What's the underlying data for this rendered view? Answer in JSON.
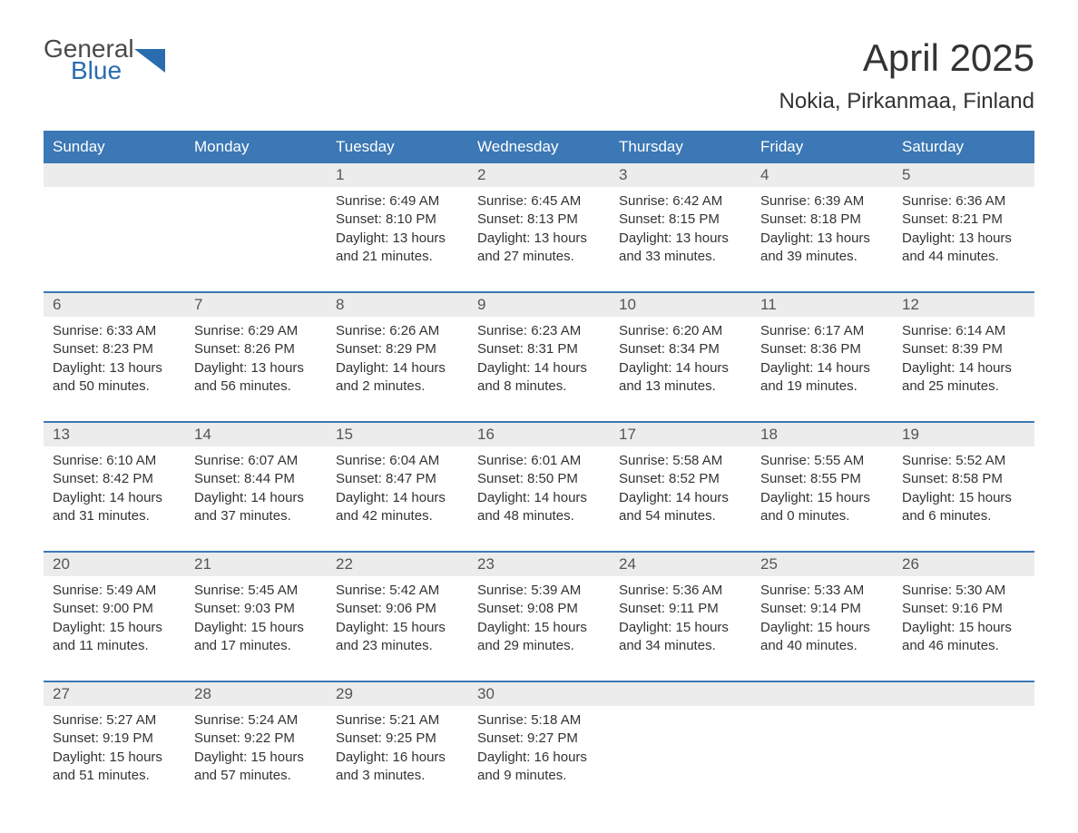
{
  "logo": {
    "general": "General",
    "blue": "Blue",
    "icon_color": "#2a6cb0"
  },
  "title": "April 2025",
  "location": "Nokia, Pirkanmaa, Finland",
  "colors": {
    "header_bg": "#3b78b5",
    "header_text": "#ffffff",
    "daynum_bg": "#ececec",
    "daynum_text": "#555555",
    "body_text": "#333333",
    "rule": "#3b78b5",
    "page_bg": "#ffffff"
  },
  "fonts": {
    "family": "Arial",
    "title_size_pt": 32,
    "location_size_pt": 18,
    "weekday_size_pt": 13,
    "daynum_size_pt": 13,
    "body_size_pt": 11
  },
  "weekdays": [
    "Sunday",
    "Monday",
    "Tuesday",
    "Wednesday",
    "Thursday",
    "Friday",
    "Saturday"
  ],
  "weeks": [
    [
      {
        "n": "",
        "lines": [
          "",
          "",
          "",
          ""
        ]
      },
      {
        "n": "",
        "lines": [
          "",
          "",
          "",
          ""
        ]
      },
      {
        "n": "1",
        "lines": [
          "Sunrise: 6:49 AM",
          "Sunset: 8:10 PM",
          "Daylight: 13 hours",
          "and 21 minutes."
        ]
      },
      {
        "n": "2",
        "lines": [
          "Sunrise: 6:45 AM",
          "Sunset: 8:13 PM",
          "Daylight: 13 hours",
          "and 27 minutes."
        ]
      },
      {
        "n": "3",
        "lines": [
          "Sunrise: 6:42 AM",
          "Sunset: 8:15 PM",
          "Daylight: 13 hours",
          "and 33 minutes."
        ]
      },
      {
        "n": "4",
        "lines": [
          "Sunrise: 6:39 AM",
          "Sunset: 8:18 PM",
          "Daylight: 13 hours",
          "and 39 minutes."
        ]
      },
      {
        "n": "5",
        "lines": [
          "Sunrise: 6:36 AM",
          "Sunset: 8:21 PM",
          "Daylight: 13 hours",
          "and 44 minutes."
        ]
      }
    ],
    [
      {
        "n": "6",
        "lines": [
          "Sunrise: 6:33 AM",
          "Sunset: 8:23 PM",
          "Daylight: 13 hours",
          "and 50 minutes."
        ]
      },
      {
        "n": "7",
        "lines": [
          "Sunrise: 6:29 AM",
          "Sunset: 8:26 PM",
          "Daylight: 13 hours",
          "and 56 minutes."
        ]
      },
      {
        "n": "8",
        "lines": [
          "Sunrise: 6:26 AM",
          "Sunset: 8:29 PM",
          "Daylight: 14 hours",
          "and 2 minutes."
        ]
      },
      {
        "n": "9",
        "lines": [
          "Sunrise: 6:23 AM",
          "Sunset: 8:31 PM",
          "Daylight: 14 hours",
          "and 8 minutes."
        ]
      },
      {
        "n": "10",
        "lines": [
          "Sunrise: 6:20 AM",
          "Sunset: 8:34 PM",
          "Daylight: 14 hours",
          "and 13 minutes."
        ]
      },
      {
        "n": "11",
        "lines": [
          "Sunrise: 6:17 AM",
          "Sunset: 8:36 PM",
          "Daylight: 14 hours",
          "and 19 minutes."
        ]
      },
      {
        "n": "12",
        "lines": [
          "Sunrise: 6:14 AM",
          "Sunset: 8:39 PM",
          "Daylight: 14 hours",
          "and 25 minutes."
        ]
      }
    ],
    [
      {
        "n": "13",
        "lines": [
          "Sunrise: 6:10 AM",
          "Sunset: 8:42 PM",
          "Daylight: 14 hours",
          "and 31 minutes."
        ]
      },
      {
        "n": "14",
        "lines": [
          "Sunrise: 6:07 AM",
          "Sunset: 8:44 PM",
          "Daylight: 14 hours",
          "and 37 minutes."
        ]
      },
      {
        "n": "15",
        "lines": [
          "Sunrise: 6:04 AM",
          "Sunset: 8:47 PM",
          "Daylight: 14 hours",
          "and 42 minutes."
        ]
      },
      {
        "n": "16",
        "lines": [
          "Sunrise: 6:01 AM",
          "Sunset: 8:50 PM",
          "Daylight: 14 hours",
          "and 48 minutes."
        ]
      },
      {
        "n": "17",
        "lines": [
          "Sunrise: 5:58 AM",
          "Sunset: 8:52 PM",
          "Daylight: 14 hours",
          "and 54 minutes."
        ]
      },
      {
        "n": "18",
        "lines": [
          "Sunrise: 5:55 AM",
          "Sunset: 8:55 PM",
          "Daylight: 15 hours",
          "and 0 minutes."
        ]
      },
      {
        "n": "19",
        "lines": [
          "Sunrise: 5:52 AM",
          "Sunset: 8:58 PM",
          "Daylight: 15 hours",
          "and 6 minutes."
        ]
      }
    ],
    [
      {
        "n": "20",
        "lines": [
          "Sunrise: 5:49 AM",
          "Sunset: 9:00 PM",
          "Daylight: 15 hours",
          "and 11 minutes."
        ]
      },
      {
        "n": "21",
        "lines": [
          "Sunrise: 5:45 AM",
          "Sunset: 9:03 PM",
          "Daylight: 15 hours",
          "and 17 minutes."
        ]
      },
      {
        "n": "22",
        "lines": [
          "Sunrise: 5:42 AM",
          "Sunset: 9:06 PM",
          "Daylight: 15 hours",
          "and 23 minutes."
        ]
      },
      {
        "n": "23",
        "lines": [
          "Sunrise: 5:39 AM",
          "Sunset: 9:08 PM",
          "Daylight: 15 hours",
          "and 29 minutes."
        ]
      },
      {
        "n": "24",
        "lines": [
          "Sunrise: 5:36 AM",
          "Sunset: 9:11 PM",
          "Daylight: 15 hours",
          "and 34 minutes."
        ]
      },
      {
        "n": "25",
        "lines": [
          "Sunrise: 5:33 AM",
          "Sunset: 9:14 PM",
          "Daylight: 15 hours",
          "and 40 minutes."
        ]
      },
      {
        "n": "26",
        "lines": [
          "Sunrise: 5:30 AM",
          "Sunset: 9:16 PM",
          "Daylight: 15 hours",
          "and 46 minutes."
        ]
      }
    ],
    [
      {
        "n": "27",
        "lines": [
          "Sunrise: 5:27 AM",
          "Sunset: 9:19 PM",
          "Daylight: 15 hours",
          "and 51 minutes."
        ]
      },
      {
        "n": "28",
        "lines": [
          "Sunrise: 5:24 AM",
          "Sunset: 9:22 PM",
          "Daylight: 15 hours",
          "and 57 minutes."
        ]
      },
      {
        "n": "29",
        "lines": [
          "Sunrise: 5:21 AM",
          "Sunset: 9:25 PM",
          "Daylight: 16 hours",
          "and 3 minutes."
        ]
      },
      {
        "n": "30",
        "lines": [
          "Sunrise: 5:18 AM",
          "Sunset: 9:27 PM",
          "Daylight: 16 hours",
          "and 9 minutes."
        ]
      },
      {
        "n": "",
        "lines": [
          "",
          "",
          "",
          ""
        ]
      },
      {
        "n": "",
        "lines": [
          "",
          "",
          "",
          ""
        ]
      },
      {
        "n": "",
        "lines": [
          "",
          "",
          "",
          ""
        ]
      }
    ]
  ]
}
